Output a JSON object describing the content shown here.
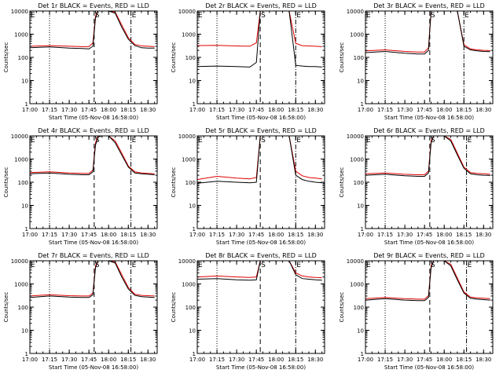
{
  "figure": {
    "xlabel": "Start Time (05-Nov-08 16:58:00)",
    "ylabel": "Counts/sec"
  },
  "chart_data": [
    {
      "type": "line",
      "title": "Det 1r BLACK = Events, RED = LLD",
      "xlabel": "Start Time (05-Nov-08 16:58:00)",
      "ylabel": "Counts/sec",
      "yscale": "log",
      "ylim": [
        1,
        10000
      ],
      "yticks": [
        "1",
        "10",
        "100",
        "1000",
        "10000"
      ],
      "xlim": [
        "17:00",
        "18:37"
      ],
      "xticks": [
        "17:00",
        "17:15",
        "17:30",
        "17:45",
        "18:00",
        "18:15",
        "18:30"
      ],
      "markers": [
        {
          "label": "E",
          "time": "17:00",
          "style": "dotted"
        },
        {
          "label": "",
          "time": "17:15",
          "style": "dotted"
        },
        {
          "label": "S",
          "time": "17:49",
          "style": "dashed"
        },
        {
          "label": "E",
          "time": "18:17",
          "style": "dashdot"
        }
      ],
      "x": [
        "17:00",
        "17:15",
        "17:30",
        "17:40",
        "17:45",
        "17:48",
        "17:50",
        "17:52",
        "17:55",
        "18:00",
        "18:05",
        "18:10",
        "18:15",
        "18:20",
        "18:25",
        "18:30",
        "18:35"
      ],
      "series": [
        {
          "name": "Events",
          "color": "#000000",
          "values": [
            260,
            280,
            250,
            240,
            230,
            300,
            5000,
            10000,
            10000,
            10000,
            8000,
            2000,
            600,
            320,
            260,
            250,
            250
          ]
        },
        {
          "name": "LLD",
          "color": "#e00000",
          "values": [
            300,
            320,
            300,
            290,
            290,
            420,
            6000,
            10000,
            10000,
            10000,
            9000,
            2500,
            700,
            360,
            310,
            300,
            290
          ]
        }
      ]
    },
    {
      "type": "line",
      "title": "Det 2r BLACK = Events, RED = LLD",
      "xlabel": "Start Time (05-Nov-08 16:58:00)",
      "ylabel": "Counts/sec",
      "yscale": "log",
      "ylim": [
        1,
        10000
      ],
      "yticks": [
        "1",
        "10",
        "100",
        "1000",
        "10000"
      ],
      "xlim": [
        "17:00",
        "18:37"
      ],
      "xticks": [
        "17:00",
        "17:15",
        "17:30",
        "17:45",
        "18:00",
        "18:15",
        "18:30"
      ],
      "markers": [
        {
          "label": "E",
          "time": "17:00",
          "style": "dotted"
        },
        {
          "label": "",
          "time": "17:15",
          "style": "dotted"
        },
        {
          "label": "S",
          "time": "17:48",
          "style": "dashed"
        },
        {
          "label": "E",
          "time": "18:15",
          "style": "dashdot"
        }
      ],
      "x": [
        "17:00",
        "17:15",
        "17:30",
        "17:40",
        "17:45",
        "17:48",
        "17:50",
        "17:52",
        "17:55",
        "18:00",
        "18:05",
        "18:10",
        "18:15",
        "18:20",
        "18:25",
        "18:30",
        "18:35"
      ],
      "series": [
        {
          "name": "Events",
          "color": "#000000",
          "values": [
            40,
            42,
            40,
            38,
            60,
            10000,
            10000,
            10000,
            10000,
            10000,
            10000,
            10000,
            45,
            42,
            40,
            40,
            38
          ]
        },
        {
          "name": "LLD",
          "color": "#e00000",
          "values": [
            320,
            330,
            310,
            300,
            420,
            10000,
            10000,
            10000,
            10000,
            10000,
            10000,
            10000,
            400,
            320,
            310,
            300,
            290
          ]
        }
      ]
    },
    {
      "type": "line",
      "title": "Det 3r BLACK = Events, RED = LLD",
      "xlabel": "Start Time (05-Nov-08 16:58:00)",
      "ylabel": "Counts/sec",
      "yscale": "log",
      "ylim": [
        1,
        10000
      ],
      "yticks": [
        "1",
        "10",
        "100",
        "1000",
        "10000"
      ],
      "xlim": [
        "17:00",
        "18:37"
      ],
      "xticks": [
        "17:00",
        "17:15",
        "17:30",
        "17:45",
        "18:00",
        "18:15",
        "18:30"
      ],
      "markers": [
        {
          "label": "E",
          "time": "17:00",
          "style": "dotted"
        },
        {
          "label": "",
          "time": "17:15",
          "style": "dotted"
        },
        {
          "label": "S",
          "time": "17:49",
          "style": "dashed"
        },
        {
          "label": "E",
          "time": "18:15",
          "style": "dashdot"
        }
      ],
      "x": [
        "17:00",
        "17:15",
        "17:30",
        "17:40",
        "17:45",
        "17:48",
        "17:50",
        "17:52",
        "17:55",
        "18:00",
        "18:05",
        "18:10",
        "18:15",
        "18:20",
        "18:25",
        "18:30",
        "18:35"
      ],
      "series": [
        {
          "name": "Events",
          "color": "#000000",
          "values": [
            160,
            180,
            150,
            140,
            140,
            200,
            10000,
            10000,
            10000,
            10000,
            10000,
            10000,
            300,
            210,
            190,
            180,
            175
          ]
        },
        {
          "name": "LLD",
          "color": "#e00000",
          "values": [
            190,
            210,
            180,
            170,
            170,
            260,
            10000,
            10000,
            10000,
            10000,
            10000,
            10000,
            350,
            230,
            210,
            200,
            195
          ]
        }
      ]
    },
    {
      "type": "line",
      "title": "Det 4r BLACK = Events, RED = LLD",
      "xlabel": "Start Time (05-Nov-08 16:58:00)",
      "ylabel": "Counts/sec",
      "yscale": "log",
      "ylim": [
        1,
        10000
      ],
      "yticks": [
        "1",
        "10",
        "100",
        "1000",
        "10000"
      ],
      "xlim": [
        "17:00",
        "18:37"
      ],
      "xticks": [
        "17:00",
        "17:15",
        "17:30",
        "17:45",
        "18:00",
        "18:15",
        "18:30"
      ],
      "markers": [
        {
          "label": "E",
          "time": "17:00",
          "style": "dotted"
        },
        {
          "label": "",
          "time": "17:15",
          "style": "dotted"
        },
        {
          "label": "S",
          "time": "17:49",
          "style": "dashed"
        },
        {
          "label": "E",
          "time": "18:17",
          "style": "dashdot"
        }
      ],
      "x": [
        "17:00",
        "17:15",
        "17:30",
        "17:40",
        "17:45",
        "17:48",
        "17:50",
        "17:52",
        "17:55",
        "18:00",
        "18:05",
        "18:10",
        "18:15",
        "18:20",
        "18:25",
        "18:30",
        "18:35"
      ],
      "series": [
        {
          "name": "Events",
          "color": "#000000",
          "values": [
            230,
            250,
            220,
            210,
            210,
            280,
            4000,
            9000,
            10000,
            10000,
            5000,
            1500,
            450,
            250,
            230,
            220,
            210
          ]
        },
        {
          "name": "LLD",
          "color": "#e00000",
          "values": [
            260,
            280,
            250,
            240,
            240,
            330,
            5000,
            10000,
            10000,
            10000,
            6000,
            1800,
            500,
            280,
            250,
            240,
            230
          ]
        }
      ]
    },
    {
      "type": "line",
      "title": "Det 5r BLACK = Events, RED = LLD",
      "xlabel": "Start Time (05-Nov-08 16:58:00)",
      "ylabel": "Counts/sec",
      "yscale": "log",
      "ylim": [
        1,
        10000
      ],
      "yticks": [
        "1",
        "10",
        "100",
        "1000",
        "10000"
      ],
      "xlim": [
        "17:00",
        "18:37"
      ],
      "xticks": [
        "17:00",
        "17:15",
        "17:30",
        "17:45",
        "18:00",
        "18:15",
        "18:30"
      ],
      "markers": [
        {
          "label": "E",
          "time": "17:00",
          "style": "dotted"
        },
        {
          "label": "",
          "time": "17:15",
          "style": "dotted"
        },
        {
          "label": "S",
          "time": "17:48",
          "style": "dashed"
        },
        {
          "label": "E",
          "time": "18:15",
          "style": "dashdot"
        }
      ],
      "x": [
        "17:00",
        "17:15",
        "17:30",
        "17:40",
        "17:45",
        "17:48",
        "17:50",
        "17:52",
        "17:55",
        "18:00",
        "18:05",
        "18:10",
        "18:15",
        "18:20",
        "18:25",
        "18:30",
        "18:35"
      ],
      "series": [
        {
          "name": "Events",
          "color": "#000000",
          "values": [
            90,
            110,
            100,
            95,
            100,
            10000,
            10000,
            10000,
            10000,
            10000,
            10000,
            10000,
            200,
            130,
            110,
            100,
            95
          ]
        },
        {
          "name": "LLD",
          "color": "#e00000",
          "values": [
            130,
            180,
            150,
            140,
            160,
            10000,
            10000,
            10000,
            10000,
            10000,
            10000,
            10000,
            300,
            190,
            160,
            150,
            140
          ]
        }
      ]
    },
    {
      "type": "line",
      "title": "Det 6r BLACK = Events, RED = LLD",
      "xlabel": "Start Time (05-Nov-08 16:58:00)",
      "ylabel": "Counts/sec",
      "yscale": "log",
      "ylim": [
        1,
        10000
      ],
      "yticks": [
        "1",
        "10",
        "100",
        "1000",
        "10000"
      ],
      "xlim": [
        "17:00",
        "18:37"
      ],
      "xticks": [
        "17:00",
        "17:15",
        "17:30",
        "17:45",
        "18:00",
        "18:15",
        "18:30"
      ],
      "markers": [
        {
          "label": "E",
          "time": "17:00",
          "style": "dotted"
        },
        {
          "label": "",
          "time": "17:15",
          "style": "dotted"
        },
        {
          "label": "S",
          "time": "17:49",
          "style": "dashed"
        },
        {
          "label": "E",
          "time": "18:17",
          "style": "dashdot"
        }
      ],
      "x": [
        "17:00",
        "17:15",
        "17:30",
        "17:40",
        "17:45",
        "17:48",
        "17:50",
        "17:52",
        "17:55",
        "18:00",
        "18:05",
        "18:10",
        "18:15",
        "18:20",
        "18:25",
        "18:30",
        "18:35"
      ],
      "series": [
        {
          "name": "Events",
          "color": "#000000",
          "values": [
            200,
            220,
            190,
            180,
            180,
            250,
            5000,
            10000,
            10000,
            10000,
            6000,
            1500,
            400,
            230,
            210,
            200,
            195
          ]
        },
        {
          "name": "LLD",
          "color": "#e00000",
          "values": [
            230,
            250,
            220,
            210,
            210,
            300,
            6000,
            10000,
            10000,
            10000,
            7000,
            1800,
            450,
            260,
            240,
            230,
            220
          ]
        }
      ]
    },
    {
      "type": "line",
      "title": "Det 7r BLACK = Events, RED = LLD",
      "xlabel": "Start Time (05-Nov-08 16:58:00)",
      "ylabel": "Counts/sec",
      "yscale": "log",
      "ylim": [
        1,
        10000
      ],
      "yticks": [
        "1",
        "10",
        "100",
        "1000",
        "10000"
      ],
      "xlim": [
        "17:00",
        "18:37"
      ],
      "xticks": [
        "17:00",
        "17:15",
        "17:30",
        "17:45",
        "18:00",
        "18:15",
        "18:30"
      ],
      "markers": [
        {
          "label": "E",
          "time": "17:00",
          "style": "dotted"
        },
        {
          "label": "",
          "time": "17:15",
          "style": "dotted"
        },
        {
          "label": "S",
          "time": "17:49",
          "style": "dashed"
        },
        {
          "label": "E",
          "time": "18:17",
          "style": "dashdot"
        }
      ],
      "x": [
        "17:00",
        "17:15",
        "17:30",
        "17:40",
        "17:45",
        "17:48",
        "17:50",
        "17:52",
        "17:55",
        "18:00",
        "18:05",
        "18:10",
        "18:15",
        "18:20",
        "18:25",
        "18:30",
        "18:35"
      ],
      "series": [
        {
          "name": "Events",
          "color": "#000000",
          "values": [
            260,
            300,
            270,
            260,
            260,
            340,
            5000,
            10000,
            10000,
            10000,
            8000,
            2000,
            600,
            320,
            280,
            270,
            260
          ]
        },
        {
          "name": "LLD",
          "color": "#e00000",
          "values": [
            300,
            340,
            310,
            300,
            300,
            400,
            6000,
            10000,
            10000,
            10000,
            9000,
            2500,
            700,
            360,
            320,
            310,
            300
          ]
        }
      ]
    },
    {
      "type": "line",
      "title": "Det 8r BLACK = Events, RED = LLD",
      "xlabel": "Start Time (05-Nov-08 16:58:00)",
      "ylabel": "Counts/sec",
      "yscale": "log",
      "ylim": [
        1,
        10000
      ],
      "yticks": [
        "1",
        "10",
        "100",
        "1000",
        "10000"
      ],
      "xlim": [
        "17:00",
        "18:37"
      ],
      "xticks": [
        "17:00",
        "17:15",
        "17:30",
        "17:45",
        "18:00",
        "18:15",
        "18:30"
      ],
      "markers": [
        {
          "label": "E",
          "time": "17:00",
          "style": "dotted"
        },
        {
          "label": "",
          "time": "17:15",
          "style": "dotted"
        },
        {
          "label": "S",
          "time": "17:48",
          "style": "dashed"
        },
        {
          "label": "E",
          "time": "18:15",
          "style": "dashdot"
        }
      ],
      "x": [
        "17:00",
        "17:15",
        "17:30",
        "17:40",
        "17:45",
        "17:48",
        "17:50",
        "17:52",
        "17:55",
        "18:00",
        "18:05",
        "18:10",
        "18:15",
        "18:20",
        "18:25",
        "18:30",
        "18:35"
      ],
      "series": [
        {
          "name": "Events",
          "color": "#000000",
          "values": [
            1600,
            1700,
            1500,
            1450,
            1500,
            10000,
            10000,
            10000,
            10000,
            10000,
            10000,
            10000,
            2500,
            1700,
            1600,
            1500,
            1450
          ]
        },
        {
          "name": "LLD",
          "color": "#e00000",
          "values": [
            2000,
            2200,
            2000,
            1900,
            2000,
            10000,
            10000,
            10000,
            10000,
            10000,
            10000,
            10000,
            3000,
            2200,
            2000,
            1900,
            1850
          ]
        }
      ]
    },
    {
      "type": "line",
      "title": "Det 9r BLACK = Events, RED = LLD",
      "xlabel": "Start Time (05-Nov-08 16:58:00)",
      "ylabel": "Counts/sec",
      "yscale": "log",
      "ylim": [
        1,
        10000
      ],
      "yticks": [
        "1",
        "10",
        "100",
        "1000",
        "10000"
      ],
      "xlim": [
        "17:00",
        "18:37"
      ],
      "xticks": [
        "17:00",
        "17:15",
        "17:30",
        "17:45",
        "18:00",
        "18:15",
        "18:30"
      ],
      "markers": [
        {
          "label": "E",
          "time": "17:00",
          "style": "dotted"
        },
        {
          "label": "",
          "time": "17:15",
          "style": "dotted"
        },
        {
          "label": "S",
          "time": "17:49",
          "style": "dashed"
        },
        {
          "label": "E",
          "time": "18:17",
          "style": "dashdot"
        }
      ],
      "x": [
        "17:00",
        "17:15",
        "17:30",
        "17:40",
        "17:45",
        "17:48",
        "17:50",
        "17:52",
        "17:55",
        "18:00",
        "18:05",
        "18:10",
        "18:15",
        "18:20",
        "18:25",
        "18:30",
        "18:35"
      ],
      "series": [
        {
          "name": "Events",
          "color": "#000000",
          "values": [
            200,
            230,
            200,
            190,
            190,
            260,
            5000,
            10000,
            10000,
            10000,
            6000,
            1500,
            400,
            240,
            220,
            210,
            200
          ]
        },
        {
          "name": "LLD",
          "color": "#e00000",
          "values": [
            230,
            260,
            230,
            220,
            220,
            310,
            6000,
            10000,
            10000,
            10000,
            7000,
            1800,
            450,
            270,
            250,
            240,
            230
          ]
        }
      ]
    }
  ]
}
